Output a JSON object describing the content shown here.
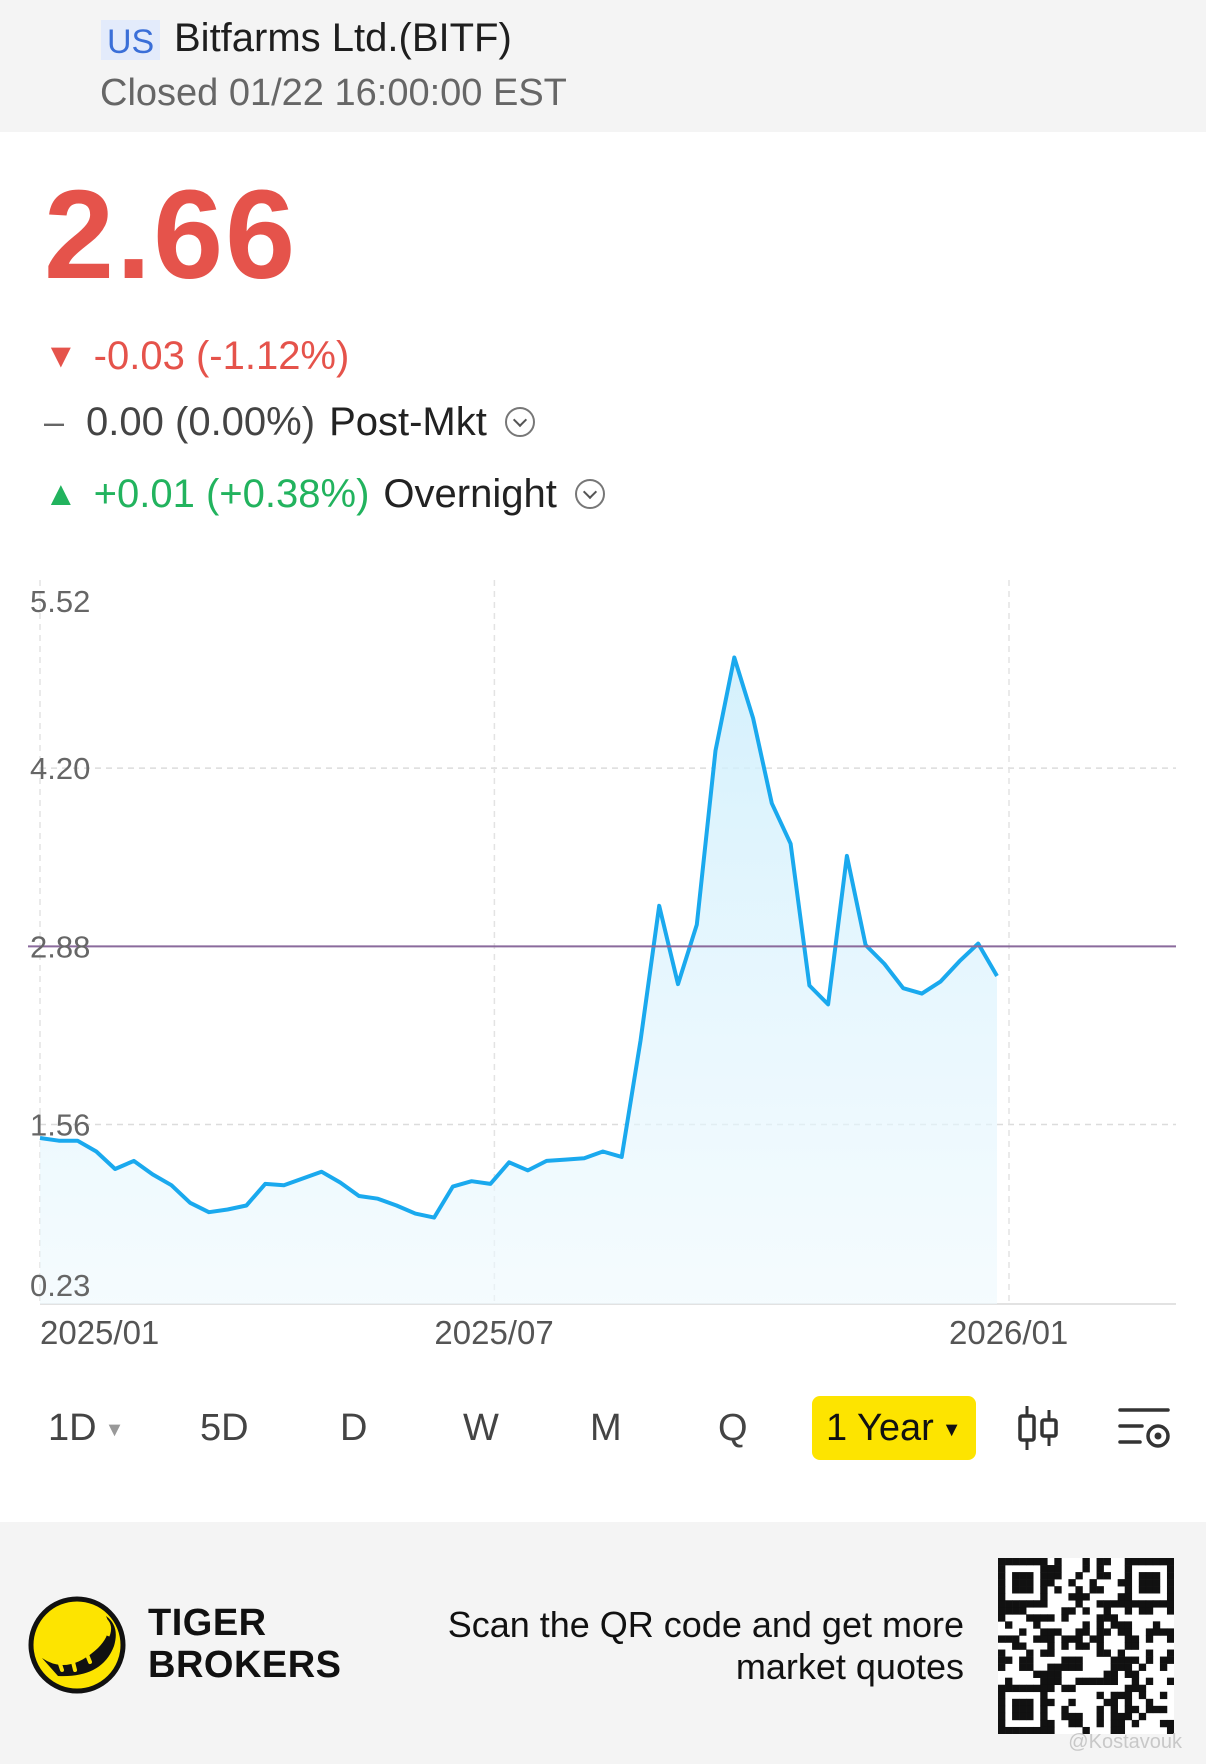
{
  "header": {
    "market": "US",
    "title": "Bitfarms Ltd.(BITF)",
    "status": "Closed 01/22 16:00:00 EST"
  },
  "quote": {
    "price": "2.66",
    "change": "-0.03 (-1.12%)",
    "postmkt_value": "0.00 (0.00%)",
    "postmkt_label": "Post-Mkt",
    "overnight_value": "+0.01 (+0.38%)",
    "overnight_label": "Overnight"
  },
  "colors": {
    "down": "#e5534b",
    "up": "#22b35e",
    "line": "#1aa9ee",
    "prev_close_line": "#8a6a9c",
    "active_period": "#fde400"
  },
  "chart_data": {
    "type": "area",
    "title": "",
    "xlabel": "",
    "ylabel": "",
    "ylim": [
      0.23,
      5.52
    ],
    "y_ticks": [
      "5.52",
      "4.20",
      "2.88",
      "1.56",
      "0.23"
    ],
    "x_ticks": [
      "2025/01",
      "2025/07",
      "2026/01"
    ],
    "reference_line": 2.88,
    "grid": true,
    "series": [
      {
        "values": [
          1.46,
          1.44,
          1.44,
          1.36,
          1.23,
          1.29,
          1.19,
          1.11,
          0.98,
          0.91,
          0.93,
          0.96,
          1.12,
          1.11,
          1.16,
          1.21,
          1.13,
          1.03,
          1.01,
          0.96,
          0.9,
          0.87,
          1.1,
          1.14,
          1.12,
          1.28,
          1.22,
          1.29,
          1.3,
          1.31,
          1.36,
          1.32,
          2.18,
          3.18,
          2.6,
          3.04,
          4.33,
          5.02,
          4.57,
          3.94,
          3.64,
          2.59,
          2.45,
          3.55,
          2.89,
          2.75,
          2.57,
          2.53,
          2.62,
          2.77,
          2.9,
          2.66
        ]
      }
    ]
  },
  "periods": [
    {
      "label": "1D",
      "dropdown": true
    },
    {
      "label": "5D"
    },
    {
      "label": "D"
    },
    {
      "label": "W"
    },
    {
      "label": "M"
    },
    {
      "label": "Q"
    },
    {
      "label": "1 Year",
      "dropdown": true,
      "active": true
    }
  ],
  "icons": {
    "candles": "candlestick-icon",
    "settings": "chart-settings-icon",
    "logo": "tiger-logo-icon",
    "qr": "qr-code-icon"
  },
  "footer": {
    "brand_line1": "TIGER",
    "brand_line2": "BROKERS",
    "scan_line1": "Scan the QR code and get more",
    "scan_line2": "market quotes",
    "watermark": "@Kostavouk"
  }
}
